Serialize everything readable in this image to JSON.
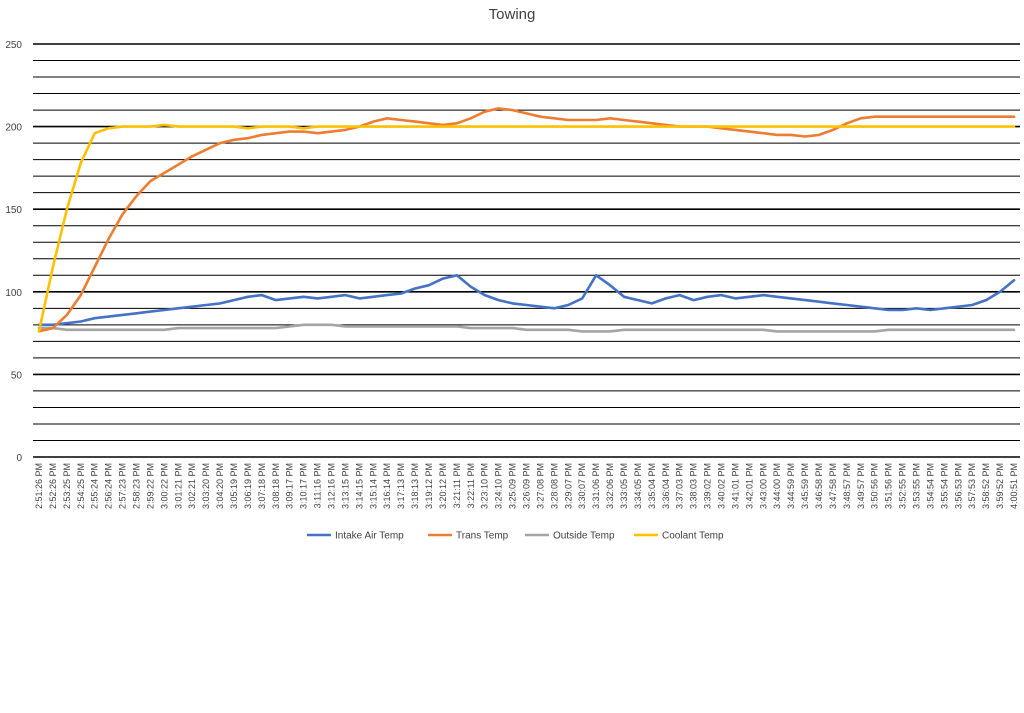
{
  "chart_data": {
    "type": "line",
    "title": "Towing",
    "xlabel": "",
    "ylabel": "",
    "ylim": [
      0,
      250
    ],
    "yticks": [
      0,
      50,
      100,
      150,
      200,
      250
    ],
    "grid": true,
    "legend_position": "bottom",
    "x": [
      "2:51:26 PM",
      "2:52:26 PM",
      "2:53:25 PM",
      "2:54:25 PM",
      "2:55:24 PM",
      "2:56:24 PM",
      "2:57:23 PM",
      "2:58:23 PM",
      "2:59:22 PM",
      "3:00:22 PM",
      "3:01:21 PM",
      "3:02:21 PM",
      "3:03:20 PM",
      "3:04:20 PM",
      "3:05:19 PM",
      "3:06:19 PM",
      "3:07:18 PM",
      "3:08:18 PM",
      "3:09:17 PM",
      "3:10:17 PM",
      "3:11:16 PM",
      "3:12:16 PM",
      "3:13:15 PM",
      "3:14:15 PM",
      "3:15:14 PM",
      "3:16:14 PM",
      "3:17:13 PM",
      "3:18:13 PM",
      "3:19:12 PM",
      "3:20:12 PM",
      "3:21:11 PM",
      "3:22:11 PM",
      "3:23:10 PM",
      "3:24:10 PM",
      "3:25:09 PM",
      "3:26:09 PM",
      "3:27:08 PM",
      "3:28:08 PM",
      "3:29:07 PM",
      "3:30:07 PM",
      "3:31:06 PM",
      "3:32:06 PM",
      "3:33:05 PM",
      "3:34:05 PM",
      "3:35:04 PM",
      "3:36:04 PM",
      "3:37:03 PM",
      "3:38:03 PM",
      "3:39:02 PM",
      "3:40:02 PM",
      "3:41:01 PM",
      "3:42:01 PM",
      "3:43:00 PM",
      "3:44:00 PM",
      "3:44:59 PM",
      "3:45:59 PM",
      "3:46:58 PM",
      "3:47:58 PM",
      "3:48:57 PM",
      "3:49:57 PM",
      "3:50:56 PM",
      "3:51:56 PM",
      "3:52:55 PM",
      "3:53:55 PM",
      "3:54:54 PM",
      "3:55:54 PM",
      "3:56:53 PM",
      "3:57:53 PM",
      "3:58:52 PM",
      "3:59:52 PM",
      "4:00:51 PM"
    ],
    "series": [
      {
        "name": "Intake Air Temp",
        "color": "#4472C4",
        "values": [
          80,
          80,
          81,
          82,
          84,
          85,
          86,
          87,
          88,
          89,
          90,
          91,
          92,
          93,
          95,
          97,
          98,
          95,
          96,
          97,
          96,
          97,
          98,
          96,
          97,
          98,
          99,
          102,
          104,
          108,
          110,
          103,
          98,
          95,
          93,
          92,
          91,
          90,
          92,
          96,
          110,
          104,
          97,
          95,
          93,
          96,
          98,
          95,
          97,
          98,
          96,
          97,
          98,
          97,
          96,
          95,
          94,
          93,
          92,
          91,
          90,
          89,
          89,
          90,
          89,
          90,
          91,
          92,
          95,
          100,
          107
        ]
      },
      {
        "name": "Trans Temp",
        "color": "#ED7D31",
        "values": [
          76,
          78,
          86,
          98,
          115,
          132,
          147,
          158,
          167,
          172,
          177,
          182,
          186,
          190,
          192,
          193,
          195,
          196,
          197,
          197,
          196,
          197,
          198,
          200,
          203,
          205,
          204,
          203,
          202,
          201,
          202,
          205,
          209,
          211,
          210,
          208,
          206,
          205,
          204,
          204,
          204,
          205,
          204,
          203,
          202,
          201,
          200,
          200,
          200,
          199,
          198,
          197,
          196,
          195,
          195,
          194,
          195,
          198,
          202,
          205,
          206,
          206,
          206,
          206,
          206,
          206,
          206,
          206,
          206,
          206,
          206
        ]
      },
      {
        "name": "Outside Temp",
        "color": "#A5A5A5",
        "values": [
          78,
          78,
          77,
          77,
          77,
          77,
          77,
          77,
          77,
          77,
          78,
          78,
          78,
          78,
          78,
          78,
          78,
          78,
          79,
          80,
          80,
          80,
          79,
          79,
          79,
          79,
          79,
          79,
          79,
          79,
          79,
          78,
          78,
          78,
          78,
          77,
          77,
          77,
          77,
          76,
          76,
          76,
          77,
          77,
          77,
          77,
          77,
          77,
          77,
          77,
          77,
          77,
          77,
          76,
          76,
          76,
          76,
          76,
          76,
          76,
          76,
          77,
          77,
          77,
          77,
          77,
          77,
          77,
          77,
          77,
          77
        ]
      },
      {
        "name": "Coolant Temp",
        "color": "#FFC000",
        "values": [
          76,
          115,
          150,
          178,
          196,
          199,
          200,
          200,
          200,
          201,
          200,
          200,
          200,
          200,
          200,
          199,
          200,
          200,
          200,
          199,
          200,
          200,
          200,
          200,
          200,
          200,
          200,
          200,
          200,
          200,
          200,
          200,
          200,
          200,
          200,
          200,
          200,
          200,
          200,
          200,
          200,
          200,
          200,
          200,
          200,
          200,
          200,
          200,
          200,
          200,
          200,
          200,
          200,
          200,
          200,
          200,
          200,
          200,
          200,
          200,
          200,
          200,
          200,
          200,
          200,
          200,
          200,
          200,
          200,
          200,
          200
        ]
      }
    ]
  }
}
